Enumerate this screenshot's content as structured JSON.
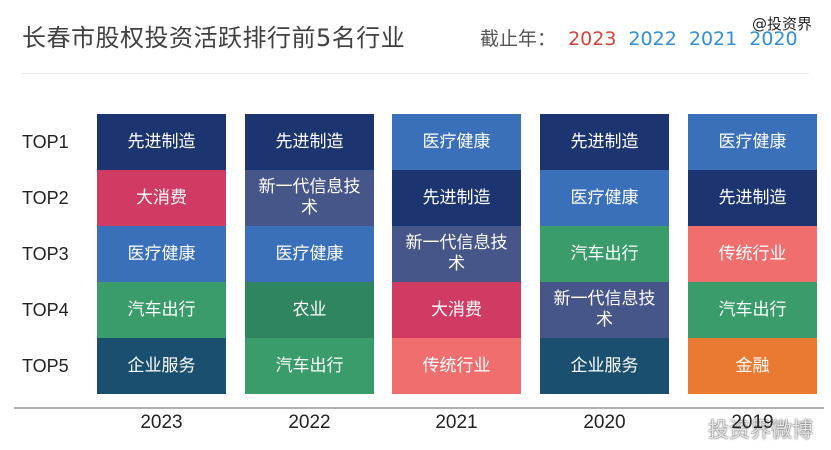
{
  "header": {
    "title": "长春市股权投资活跃排行前5名行业",
    "cutoff_label": "截止年：",
    "cutoff_years": [
      {
        "label": "2023",
        "color": "#d9423a"
      },
      {
        "label": "2022",
        "color": "#2f8fd8"
      },
      {
        "label": "2021",
        "color": "#2f8fd8"
      },
      {
        "label": "2020",
        "color": "#2f8fd8"
      }
    ],
    "watermark_top": "@投资界"
  },
  "watermark_bottom": "投资界微博",
  "colors": {
    "先进制造": "#1c3571",
    "大消费": "#cf3b62",
    "医疗健康": "#3a70b9",
    "汽车出行": "#3a9c6a",
    "企业服务": "#1a4f6f",
    "新一代信息技术": "#475688",
    "农业": "#2e8560",
    "传统行业": "#f06e6e",
    "金融": "#ea7a32"
  },
  "chart_data": {
    "type": "table",
    "rows": [
      "TOP1",
      "TOP2",
      "TOP3",
      "TOP4",
      "TOP5"
    ],
    "columns": [
      "2023",
      "2022",
      "2021",
      "2020",
      "2019"
    ],
    "cells": [
      [
        "先进制造",
        "大消费",
        "医疗健康",
        "汽车出行",
        "企业服务"
      ],
      [
        "先进制造",
        "新一代信息技术",
        "医疗健康",
        "农业",
        "汽车出行"
      ],
      [
        "医疗健康",
        "先进制造",
        "新一代信息技术",
        "大消费",
        "传统行业"
      ],
      [
        "先进制造",
        "医疗健康",
        "汽车出行",
        "新一代信息技术",
        "企业服务"
      ],
      [
        "医疗健康",
        "先进制造",
        "传统行业",
        "汽车出行",
        "金融"
      ]
    ]
  }
}
